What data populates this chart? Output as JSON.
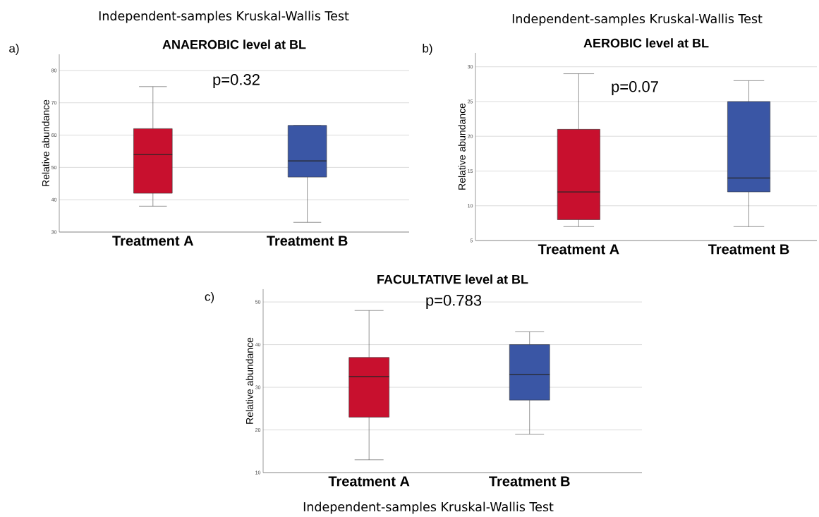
{
  "chart_data": [
    {
      "type": "box",
      "title": "ANAEROBIC level at BL",
      "subtitle": "Independent-samples Kruskal-Wallis Test",
      "ylabel": "Relative abundance",
      "annotations": [
        "a)",
        "p=0.32"
      ],
      "categories": [
        "Treatment A",
        "Treatment B"
      ],
      "colors": [
        "#c8102e",
        "#3a56a5"
      ],
      "boxes": [
        {
          "low": 38,
          "q1": 42,
          "median": 54,
          "q3": 62,
          "high": 75
        },
        {
          "low": 33,
          "q1": 47,
          "median": 52,
          "q3": 63,
          "high": 63
        }
      ],
      "ylim": [
        30,
        85
      ],
      "yticks": [
        30,
        40,
        50,
        60,
        70,
        80
      ],
      "grid": "y"
    },
    {
      "type": "box",
      "title": "AEROBIC level at BL",
      "subtitle": "Independent-samples Kruskal-Wallis Test",
      "ylabel": "Relative abundance",
      "annotations": [
        "b)",
        "p=0.07"
      ],
      "categories": [
        "Treatment A",
        "Treatment B"
      ],
      "colors": [
        "#c8102e",
        "#3a56a5"
      ],
      "boxes": [
        {
          "low": 7,
          "q1": 8,
          "median": 12,
          "q3": 21,
          "high": 29
        },
        {
          "low": 7,
          "q1": 12,
          "median": 14,
          "q3": 25,
          "high": 28
        }
      ],
      "ylim": [
        5,
        32
      ],
      "yticks": [
        5,
        10,
        15,
        20,
        25,
        30
      ],
      "grid": "y"
    },
    {
      "type": "box",
      "title": "FACULTATIVE level at BL",
      "ylabel": "Relative abundance",
      "annotations": [
        "c)",
        "p=0.783",
        "Independent-samples Kruskal-Wallis Test"
      ],
      "categories": [
        "Treatment A",
        "Treatment B"
      ],
      "colors": [
        "#c8102e",
        "#3a56a5"
      ],
      "boxes": [
        {
          "low": 13,
          "q1": 23,
          "median": 32.5,
          "q3": 37,
          "high": 48
        },
        {
          "low": 19,
          "q1": 27,
          "median": 33,
          "q3": 40,
          "high": 43
        }
      ],
      "ylim": [
        10,
        53
      ],
      "yticks": [
        10,
        20,
        30,
        40,
        50
      ],
      "grid": "y"
    }
  ]
}
